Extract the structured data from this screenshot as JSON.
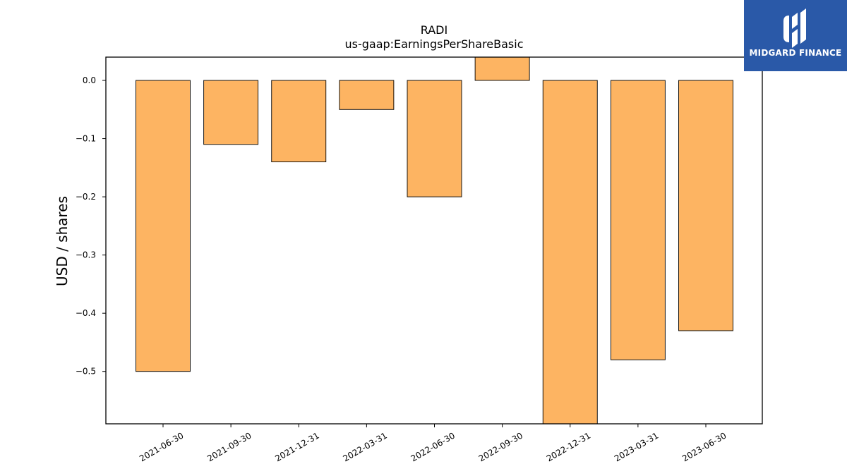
{
  "chart_data": {
    "type": "bar",
    "title": "RADI",
    "subtitle": "us-gaap:EarningsPerShareBasic",
    "xlabel": "",
    "ylabel": "USD / shares",
    "categories": [
      "2021-06-30",
      "2021-09-30",
      "2021-12-31",
      "2022-03-31",
      "2022-06-30",
      "2022-09-30",
      "2022-12-31",
      "2023-03-31",
      "2023-06-30"
    ],
    "values": [
      -0.5,
      -0.11,
      -0.14,
      -0.05,
      -0.2,
      0.04,
      -0.59,
      -0.48,
      -0.43
    ],
    "ylim": [
      -0.59,
      0.04
    ],
    "yticks": [
      0.0,
      -0.1,
      -0.2,
      -0.3,
      -0.4,
      -0.5
    ],
    "ytick_labels": [
      "0.0",
      "−0.1",
      "−0.2",
      "−0.3",
      "−0.4",
      "−0.5"
    ],
    "grid": false,
    "bar_color": "#fdb462",
    "bar_edge_color": "#000000"
  },
  "logo": {
    "text": "MIDGARD FINANCE",
    "background": "#2a59a8"
  }
}
